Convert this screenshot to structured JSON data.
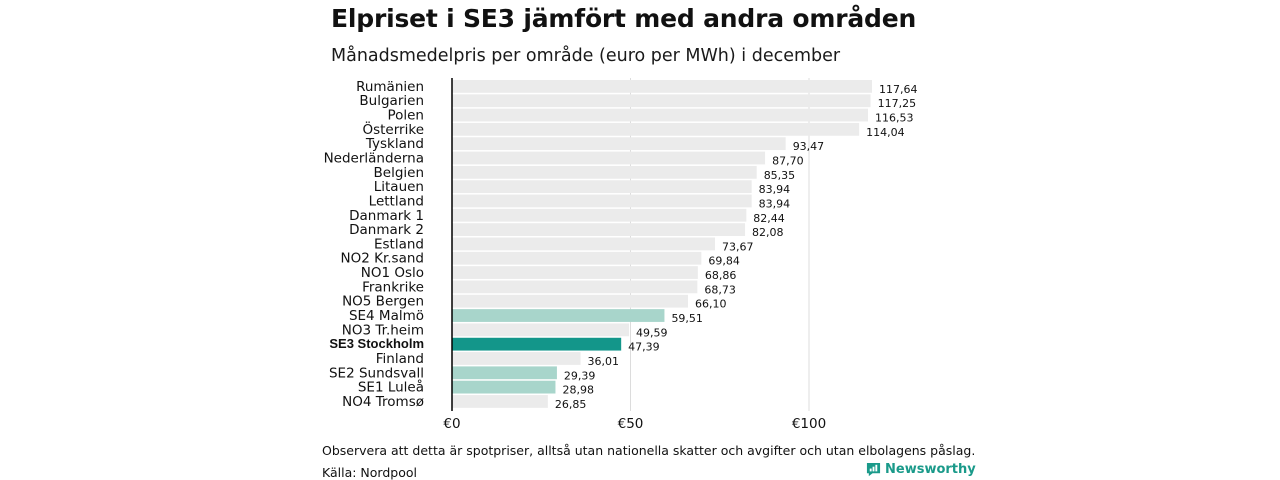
{
  "chart_data": {
    "type": "bar",
    "orientation": "horizontal",
    "title": "Elpriset i SE3 jämfört med andra områden",
    "subtitle": "Månadsmedelpris per område (euro per MWh) i december",
    "xlabel": "",
    "ylabel": "",
    "xlim": [
      0,
      125
    ],
    "xticks": [
      0,
      50,
      100
    ],
    "xtick_labels": [
      "€0",
      "€50",
      "€100"
    ],
    "grid": true,
    "categories": [
      "Rumänien",
      "Bulgarien",
      "Polen",
      "Österrike",
      "Tyskland",
      "Nederländerna",
      "Belgien",
      "Litauen",
      "Lettland",
      "Danmark  1",
      "Danmark  2",
      "Estland",
      "NO2 Kr.sand",
      "NO1 Oslo",
      "Frankrike",
      "NO5 Bergen",
      "SE4  Malmö",
      "NO3 Tr.heim",
      "SE3 Stockholm",
      "Finland",
      "SE2  Sundsvall",
      "SE1  Luleå",
      "NO4 Tromsø"
    ],
    "values": [
      117.64,
      117.25,
      116.53,
      114.04,
      93.47,
      87.7,
      85.35,
      83.94,
      83.94,
      82.44,
      82.08,
      73.67,
      69.84,
      68.86,
      68.73,
      66.1,
      59.51,
      49.59,
      47.39,
      36.01,
      29.39,
      28.98,
      26.85
    ],
    "value_labels": [
      "117,64",
      "117,25",
      "116,53",
      "114,04",
      "93,47",
      "87,70",
      "85,35",
      "83,94",
      "83,94",
      "82,44",
      "82,08",
      "73,67",
      "69,84",
      "68,86",
      "68,73",
      "66,10",
      "59,51",
      "49,59",
      "47,39",
      "36,01",
      "29,39",
      "28,98",
      "26,85"
    ],
    "groups": [
      "other",
      "other",
      "other",
      "other",
      "other",
      "other",
      "other",
      "other",
      "other",
      "other",
      "other",
      "other",
      "other",
      "other",
      "other",
      "other",
      "sweden",
      "other",
      "focus",
      "other",
      "sweden",
      "sweden",
      "other"
    ],
    "colors": {
      "other": "#ebebeb",
      "sweden": "#a8d5cb",
      "focus": "#13968a",
      "axis": "#000000",
      "grid": "#dcdcdc"
    }
  },
  "footer": {
    "note": "Observera att detta är spotpriser, alltså utan nationella skatter och avgifter och utan elbolagens påslag.",
    "source": "Källa: Nordpool",
    "brand": "Newsworthy",
    "brand_color": "#1a9a8a"
  }
}
